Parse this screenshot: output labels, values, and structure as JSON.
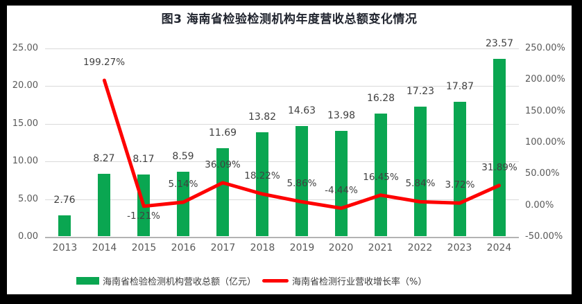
{
  "title": "图3 海南省检验检测机构年度营收总额变化情况",
  "colors": {
    "frame": "#000000",
    "panel_background": "#FFFFFF",
    "gridline": "#D9D9D9",
    "axis_text": "#595959",
    "data_label_text": "#404040",
    "title_text": "#21252F"
  },
  "chart_data": {
    "type": "combo-bar-line",
    "title": "图3 海南省检验检测机构年度营收总额变化情况",
    "categories": [
      "2013",
      "2014",
      "2015",
      "2016",
      "2017",
      "2018",
      "2019",
      "2020",
      "2021",
      "2022",
      "2023",
      "2024"
    ],
    "series": [
      {
        "name": "海南省检验检测机构营收总额（亿元）",
        "type": "bar",
        "axis": "left",
        "color": "#0AA651",
        "values": [
          2.76,
          8.27,
          8.17,
          8.59,
          11.69,
          13.82,
          14.63,
          13.98,
          16.28,
          17.23,
          17.87,
          23.57
        ],
        "data_labels": [
          "2.76",
          "8.27",
          "8.17",
          "8.59",
          "11.69",
          "13.82",
          "14.63",
          "13.98",
          "16.28",
          "17.23",
          "17.87",
          "23.57"
        ]
      },
      {
        "name": "海南省检测行业营收增长率（%）",
        "type": "line",
        "axis": "right",
        "color": "#FE0000",
        "values": [
          null,
          199.27,
          -1.21,
          5.14,
          36.09,
          18.22,
          5.86,
          -4.44,
          16.45,
          5.84,
          3.72,
          31.89
        ],
        "data_labels": [
          null,
          {
            "text": "199.27%",
            "pos": "above"
          },
          {
            "text": "-1.21%",
            "pos": "below"
          },
          {
            "text": "5.14%",
            "pos": "above"
          },
          {
            "text": "36.09%",
            "pos": "above"
          },
          {
            "text": "18.22%",
            "pos": "above"
          },
          {
            "text": "5.86%",
            "pos": "above"
          },
          {
            "text": "-4.44%",
            "pos": "above"
          },
          {
            "text": "16.45%",
            "pos": "above"
          },
          {
            "text": "5.84%",
            "pos": "above"
          },
          {
            "text": "3.72%",
            "pos": "above"
          },
          {
            "text": "31.89%",
            "pos": "above"
          }
        ]
      }
    ],
    "axes": {
      "left": {
        "min": 0,
        "max": 25,
        "ticks": [
          "25.00",
          "20.00",
          "15.00",
          "10.00",
          "5.00",
          "0.00"
        ]
      },
      "right": {
        "min": -50,
        "max": 250,
        "ticks": [
          "250.00%",
          "200.00%",
          "150.00%",
          "100.00%",
          "50.00%",
          "0.00%",
          "-50.00%"
        ]
      }
    },
    "grid": "horizontal-only",
    "legend_position": "bottom"
  }
}
